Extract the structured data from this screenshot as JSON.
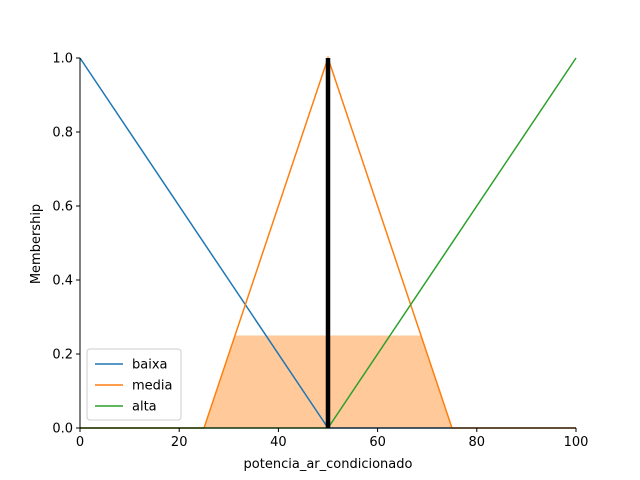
{
  "chart_data": {
    "type": "line",
    "title": "",
    "xlabel": "potencia_ar_condicionado",
    "ylabel": "Membership",
    "xlim": [
      0,
      100
    ],
    "ylim": [
      0,
      1.0
    ],
    "x_ticks": [
      0,
      20,
      40,
      60,
      80,
      100
    ],
    "x_tick_labels": [
      "0",
      "20",
      "40",
      "60",
      "80",
      "100"
    ],
    "y_ticks": [
      0.0,
      0.2,
      0.4,
      0.6,
      0.8,
      1.0
    ],
    "y_tick_labels": [
      "0.0",
      "0.2",
      "0.4",
      "0.6",
      "0.8",
      "1.0"
    ],
    "grid": false,
    "legend_position": "lower-left",
    "series": [
      {
        "name": "baixa",
        "color": "#1f77b4",
        "x": [
          0,
          50,
          100
        ],
        "y": [
          1.0,
          0.0,
          0.0
        ]
      },
      {
        "name": "media",
        "color": "#ff7f0e",
        "x": [
          0,
          25,
          50,
          75,
          100
        ],
        "y": [
          0.0,
          0.0,
          1.0,
          0.0,
          0.0
        ]
      },
      {
        "name": "alta",
        "color": "#2ca02c",
        "x": [
          0,
          50,
          100
        ],
        "y": [
          0.0,
          0.0,
          1.0
        ]
      }
    ],
    "activation_area": {
      "color": "#ffc999",
      "x": [
        25,
        31.25,
        68.75,
        75
      ],
      "y": [
        0.0,
        0.25,
        0.25,
        0.0
      ]
    },
    "crisp_output": {
      "x": 50,
      "color": "#000000"
    }
  }
}
